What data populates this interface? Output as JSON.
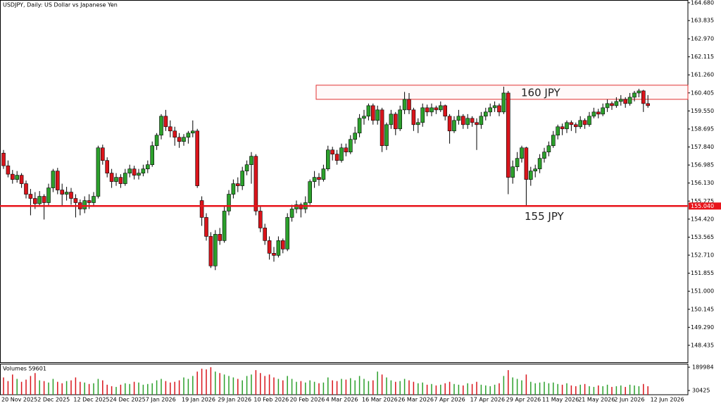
{
  "chart_data": {
    "type": "candlestick",
    "title": "USDJPY, Daily:  US Dollar vs Japanese Yen",
    "categories": [
      "20 Nov 2025",
      null,
      null,
      null,
      null,
      null,
      null,
      null,
      "2 Dec 2025",
      null,
      null,
      null,
      null,
      null,
      null,
      null,
      "12 Dec 2025",
      null,
      null,
      null,
      null,
      null,
      null,
      null,
      "24 Dec 2025",
      null,
      null,
      null,
      null,
      null,
      null,
      null,
      "7 Jan 2026",
      null,
      null,
      null,
      null,
      null,
      null,
      null,
      "19 Jan 2026",
      null,
      null,
      null,
      null,
      null,
      null,
      null,
      "29 Jan 2026",
      null,
      null,
      null,
      null,
      null,
      null,
      null,
      "10 Feb 2026",
      null,
      null,
      null,
      null,
      null,
      null,
      null,
      "20 Feb 2026",
      null,
      null,
      null,
      null,
      null,
      null,
      null,
      "4 Mar 2026",
      null,
      null,
      null,
      null,
      null,
      null,
      null,
      "16 Mar 2026",
      null,
      null,
      null,
      null,
      null,
      null,
      null,
      "26 Mar 2026",
      null,
      null,
      null,
      null,
      null,
      null,
      null,
      "7 Apr 2026",
      null,
      null,
      null,
      null,
      null,
      null,
      null,
      "17 Apr 2026",
      null,
      null,
      null,
      null,
      null,
      null,
      null,
      "29 Apr 2026",
      null,
      null,
      null,
      null,
      null,
      null,
      null,
      "11 May 2026",
      null,
      null,
      null,
      null,
      null,
      null,
      null,
      "21 May 2026",
      null,
      null,
      null,
      null,
      null,
      null,
      null,
      "2 Jun 2026",
      null,
      null,
      null,
      null,
      null,
      null,
      null,
      "12 Jun 2026"
    ],
    "open": [
      157.55,
      156.95,
      156.55,
      156.3,
      156.5,
      156.1,
      155.6,
      155.4,
      155.15,
      155.5,
      155.2,
      155.9,
      156.7,
      155.8,
      155.6,
      155.7,
      155.4,
      155.2,
      154.9,
      155.3,
      155.2,
      155.5,
      157.8,
      157.2,
      156.6,
      156.2,
      156.4,
      156.1,
      156.6,
      156.8,
      156.5,
      156.6,
      156.8,
      157.0,
      157.9,
      158.4,
      159.3,
      158.8,
      158.6,
      158.3,
      158.1,
      158.3,
      158.5,
      158.6,
      155.3,
      154.5,
      153.6,
      152.2,
      153.7,
      153.4,
      154.8,
      155.6,
      156.1,
      156.0,
      156.7,
      157.0,
      157.4,
      154.8,
      154.0,
      153.4,
      152.8,
      152.7,
      153.4,
      153.0,
      154.5,
      154.9,
      155.1,
      154.9,
      155.2,
      156.2,
      156.4,
      156.3,
      156.8,
      157.7,
      157.5,
      157.2,
      157.8,
      157.6,
      158.2,
      158.5,
      159.2,
      159.3,
      159.8,
      159.1,
      159.6,
      157.9,
      158.9,
      159.4,
      158.7,
      159.6,
      160.1,
      159.6,
      158.9,
      159.0,
      159.7,
      159.5,
      159.7,
      159.6,
      159.8,
      159.3,
      158.6,
      159.1,
      159.3,
      158.9,
      159.2,
      159.0,
      158.9,
      159.3,
      159.5,
      159.7,
      159.8,
      159.5,
      160.4,
      156.4,
      156.9,
      157.3,
      157.8,
      156.3,
      156.7,
      156.8,
      157.3,
      157.6,
      157.9,
      158.4,
      158.8,
      158.7,
      159.0,
      158.9,
      158.8,
      159.1,
      158.9,
      159.3,
      159.5,
      159.4,
      159.7,
      159.9,
      159.8,
      160.0,
      160.1,
      159.9,
      160.2,
      160.4,
      160.5,
      159.9,
      null
    ],
    "high": [
      157.7,
      157.2,
      156.75,
      156.7,
      156.6,
      156.25,
      155.85,
      155.7,
      155.75,
      155.6,
      156.1,
      156.8,
      156.85,
      156.1,
      155.95,
      155.9,
      155.6,
      155.35,
      155.5,
      155.6,
      155.7,
      157.9,
      157.95,
      157.35,
      156.8,
      156.6,
      156.55,
      156.8,
      157.0,
      156.95,
      156.8,
      157.0,
      157.2,
      158.1,
      158.5,
      159.4,
      159.6,
      159.1,
      158.8,
      158.5,
      158.45,
      158.6,
      159.1,
      158.7,
      155.5,
      154.7,
      153.8,
      153.9,
      154.0,
      155.0,
      155.8,
      156.3,
      156.4,
      156.9,
      157.2,
      157.6,
      157.5,
      155.0,
      154.2,
      153.6,
      153.1,
      153.6,
      153.5,
      154.7,
      155.1,
      155.3,
      155.2,
      155.5,
      156.3,
      156.7,
      156.6,
      157.0,
      157.9,
      157.85,
      157.7,
      158.0,
      158.0,
      158.4,
      158.8,
      159.4,
      159.6,
      159.9,
      159.9,
      159.8,
      159.7,
      159.0,
      159.6,
      159.5,
      159.8,
      160.45,
      160.4,
      159.7,
      159.2,
      159.9,
      159.85,
      159.9,
      159.8,
      160.0,
      159.85,
      159.4,
      159.3,
      159.6,
      159.4,
      159.4,
      159.3,
      159.2,
      159.5,
      159.7,
      159.9,
      160.0,
      159.9,
      160.7,
      160.5,
      157.2,
      157.6,
      157.9,
      157.85,
      156.9,
      157.0,
      157.5,
      157.8,
      158.1,
      158.6,
      158.9,
      158.95,
      159.1,
      159.1,
      159.0,
      159.3,
      159.2,
      159.5,
      159.7,
      159.65,
      159.9,
      160.1,
      160.0,
      160.2,
      160.3,
      160.2,
      160.4,
      160.5,
      160.6,
      160.55,
      160.3,
      null
    ],
    "low": [
      156.8,
      156.4,
      156.1,
      156.15,
      155.9,
      155.4,
      154.6,
      154.9,
      155.0,
      154.4,
      155.05,
      155.7,
      155.6,
      155.0,
      155.3,
      155.1,
      154.5,
      154.6,
      154.7,
      154.9,
      155.0,
      155.4,
      157.0,
      156.4,
      155.9,
      156.0,
      155.9,
      156.0,
      156.4,
      156.3,
      156.3,
      156.45,
      156.6,
      156.9,
      157.7,
      158.2,
      158.6,
      158.3,
      157.9,
      157.8,
      157.9,
      158.0,
      158.3,
      155.9,
      154.1,
      153.4,
      152.1,
      152.0,
      153.2,
      153.3,
      154.6,
      155.4,
      155.7,
      155.8,
      156.5,
      156.1,
      154.6,
      153.8,
      153.2,
      152.5,
      152.4,
      152.6,
      152.8,
      152.9,
      154.3,
      154.7,
      154.5,
      154.7,
      155.1,
      155.9,
      156.0,
      156.2,
      156.7,
      157.2,
      157.0,
      157.1,
      157.4,
      157.5,
      158.0,
      158.3,
      158.9,
      159.1,
      158.9,
      158.9,
      157.6,
      157.7,
      158.7,
      158.4,
      158.6,
      159.4,
      159.4,
      158.6,
      158.5,
      158.8,
      159.3,
      159.3,
      159.4,
      159.5,
      159.1,
      158.0,
      158.5,
      158.9,
      158.7,
      158.7,
      158.8,
      157.7,
      158.7,
      159.1,
      159.3,
      159.5,
      159.3,
      159.4,
      155.6,
      156.1,
      156.7,
      157.1,
      155.05,
      156.0,
      156.4,
      156.6,
      157.1,
      157.4,
      157.8,
      158.2,
      158.4,
      158.5,
      158.6,
      158.5,
      158.7,
      158.7,
      158.8,
      159.2,
      159.2,
      159.3,
      159.5,
      159.6,
      159.7,
      159.8,
      159.7,
      159.8,
      160.0,
      160.2,
      159.5,
      159.7,
      null
    ],
    "close": [
      156.95,
      156.55,
      156.3,
      156.5,
      156.1,
      155.6,
      155.4,
      155.15,
      155.5,
      155.2,
      155.9,
      156.7,
      155.8,
      155.6,
      155.7,
      155.4,
      155.2,
      154.9,
      155.3,
      155.2,
      155.5,
      157.8,
      157.2,
      156.6,
      156.2,
      156.4,
      156.1,
      156.6,
      156.8,
      156.5,
      156.6,
      156.8,
      157.0,
      157.9,
      158.4,
      159.3,
      158.8,
      158.6,
      158.3,
      158.1,
      158.3,
      158.5,
      158.6,
      156.0,
      154.5,
      153.6,
      152.2,
      153.7,
      153.4,
      154.8,
      155.6,
      156.1,
      156.0,
      156.7,
      157.0,
      157.4,
      154.8,
      154.0,
      153.4,
      152.8,
      152.7,
      153.4,
      153.0,
      154.5,
      154.9,
      155.1,
      154.9,
      155.2,
      156.2,
      156.4,
      156.3,
      156.8,
      157.7,
      157.5,
      157.2,
      157.8,
      157.6,
      158.2,
      158.5,
      159.2,
      159.3,
      159.8,
      159.1,
      159.6,
      157.9,
      158.9,
      159.4,
      158.7,
      159.6,
      160.1,
      159.6,
      158.9,
      159.0,
      159.7,
      159.5,
      159.7,
      159.6,
      159.8,
      159.3,
      158.6,
      159.1,
      159.3,
      158.9,
      159.2,
      159.0,
      158.9,
      159.3,
      159.5,
      159.7,
      159.8,
      159.5,
      160.4,
      156.4,
      156.9,
      157.3,
      157.8,
      156.3,
      156.7,
      156.8,
      157.3,
      157.6,
      157.9,
      158.4,
      158.8,
      158.7,
      159.0,
      158.9,
      158.8,
      159.1,
      158.9,
      159.3,
      159.5,
      159.4,
      159.7,
      159.9,
      159.8,
      160.0,
      160.1,
      159.9,
      160.2,
      160.4,
      160.5,
      159.9,
      159.8,
      null
    ],
    "up_color": "#2ca02c",
    "down_color": "#d9141b",
    "ylim": [
      147.63,
      164.81
    ],
    "yticks": [
      {
        "value": 164.68,
        "label": "164.680"
      },
      {
        "value": 163.835,
        "label": "163.835"
      },
      {
        "value": 162.97,
        "label": "162.970"
      },
      {
        "value": 162.115,
        "label": "162.115"
      },
      {
        "value": 161.26,
        "label": "161.260"
      },
      {
        "value": 160.405,
        "label": "160.405"
      },
      {
        "value": 159.55,
        "label": "159.550"
      },
      {
        "value": 158.695,
        "label": "158.695"
      },
      {
        "value": 157.84,
        "label": "157.840"
      },
      {
        "value": 156.985,
        "label": "156.985"
      },
      {
        "value": 156.13,
        "label": "156.130"
      },
      {
        "value": 155.275,
        "label": "155.275"
      },
      {
        "value": 154.42,
        "label": "154.420"
      },
      {
        "value": 153.565,
        "label": "153.565"
      },
      {
        "value": 152.71,
        "label": "152.710"
      },
      {
        "value": 151.855,
        "label": "151.855"
      },
      {
        "value": 151.0,
        "label": "151.000"
      },
      {
        "value": 150.145,
        "label": "150.145"
      },
      {
        "value": 149.29,
        "label": "149.290"
      },
      {
        "value": 148.435,
        "label": "148.435"
      }
    ],
    "grid": false,
    "hline": {
      "value": 155.04,
      "tag": "155.040",
      "label": "155 JPY",
      "color": "#e8141b"
    },
    "zone": {
      "low": 160.1,
      "high": 160.77,
      "label": "160 JPY",
      "color": "#e03030"
    },
    "volume": {
      "title": "Volumes 59601",
      "values": [
        120000,
        95000,
        140000,
        110000,
        90000,
        105000,
        130000,
        150000,
        100000,
        95000,
        85000,
        110000,
        90000,
        80000,
        95000,
        100000,
        120000,
        90000,
        85000,
        75000,
        80000,
        110000,
        100000,
        70000,
        60000,
        55000,
        70000,
        80000,
        75000,
        90000,
        85000,
        70000,
        75000,
        80000,
        100000,
        110000,
        95000,
        85000,
        90000,
        100000,
        120000,
        110000,
        130000,
        160000,
        180000,
        175000,
        190000,
        160000,
        150000,
        140000,
        130000,
        120000,
        110000,
        100000,
        130000,
        140000,
        170000,
        150000,
        130000,
        140000,
        120000,
        110000,
        100000,
        130000,
        110000,
        90000,
        95000,
        85000,
        100000,
        90000,
        80000,
        85000,
        120000,
        100000,
        95000,
        110000,
        105000,
        115000,
        100000,
        130000,
        110000,
        95000,
        100000,
        160000,
        140000,
        120000,
        100000,
        90000,
        95000,
        110000,
        100000,
        90000,
        80000,
        85000,
        70000,
        75000,
        65000,
        70000,
        80000,
        90000,
        75000,
        70000,
        65000,
        80000,
        75000,
        90000,
        70000,
        65000,
        60000,
        70000,
        80000,
        130000,
        170000,
        120000,
        110000,
        100000,
        140000,
        90000,
        80000,
        85000,
        90000,
        80000,
        85000,
        75000,
        70000,
        80000,
        65000,
        60000,
        70000,
        75000,
        60000,
        55000,
        65000,
        60000,
        70000,
        55000,
        60000,
        65000,
        55000,
        70000,
        65000,
        60000,
        75000,
        59601,
        null
      ],
      "ylim": [
        1400,
        209300
      ],
      "yticks": [
        189984,
        30425
      ]
    }
  }
}
